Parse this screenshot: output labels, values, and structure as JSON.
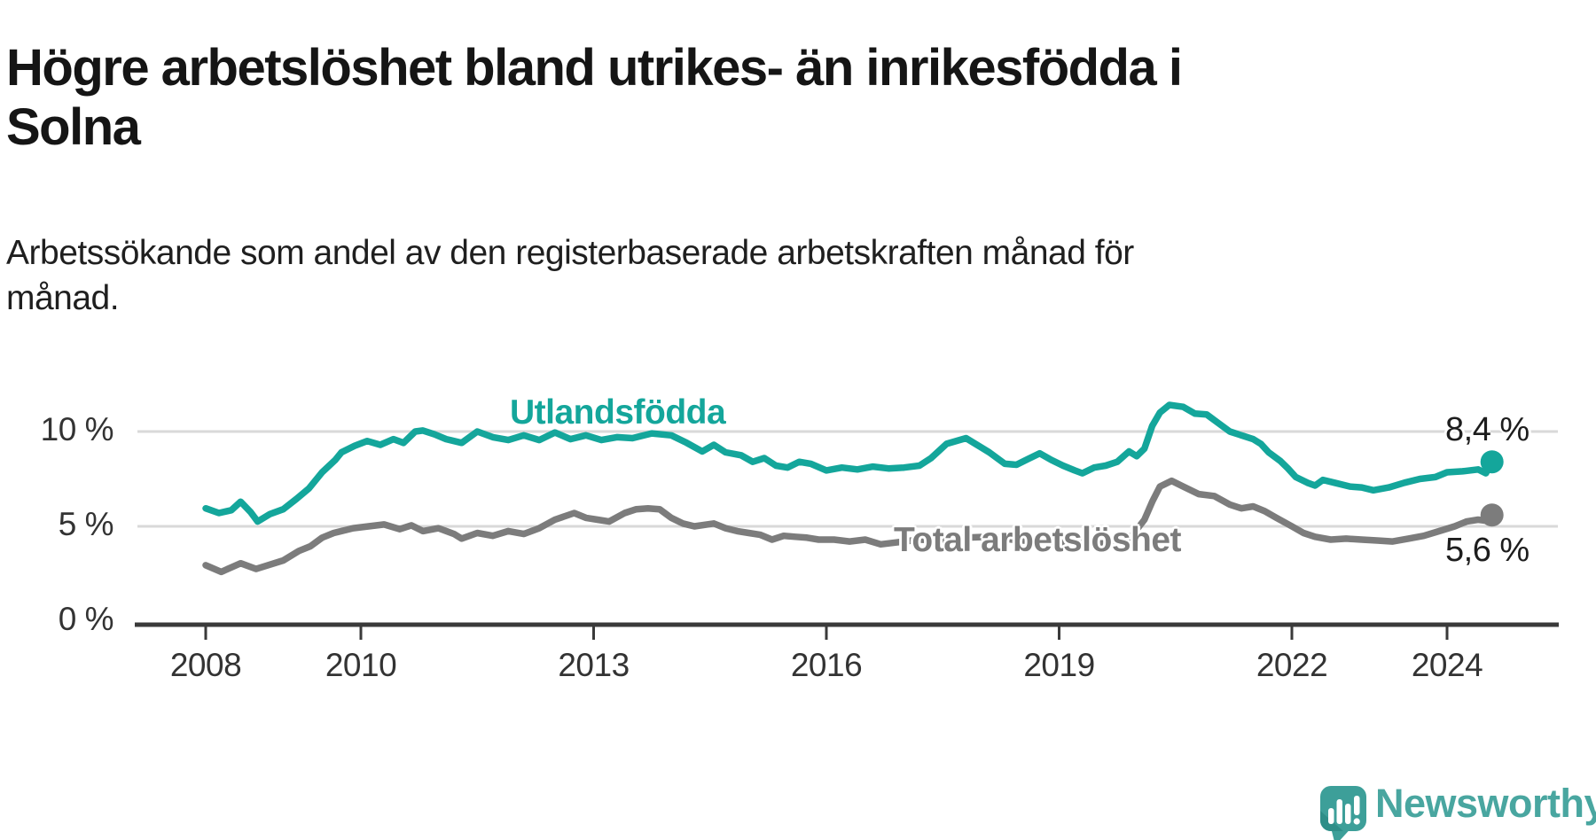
{
  "header": {
    "title_lines": [
      "Högre arbetslöshet bland utrikes- än inrikesfödda i",
      "Solna"
    ],
    "subtitle_lines": [
      "Arbetssökande som andel av den registerbaserade arbetskraften månad för",
      "månad."
    ]
  },
  "footer": {
    "brand": "Newsworthy",
    "logo_icon": "speech-bubble-bar-chart-icon"
  },
  "colors": {
    "teal": "#14a69b",
    "gray": "#7c7c7c",
    "grid": "#d9d9d9",
    "axis": "#3a3a3a",
    "value_label": "#1d1d1d",
    "brand": "#49a6a0",
    "title_text": "#151515",
    "axis_text": "#333333"
  },
  "chart_data": {
    "type": "line",
    "title": "Högre arbetslöshet bland utrikes- än inrikesfödda i Solna",
    "subtitle": "Arbetssökande som andel av den registerbaserade arbetskraften månad för månad.",
    "unit": "%",
    "grid": "horizontal-only",
    "legend_position": "inline-labels",
    "xlim": [
      2007.9,
      2025.4
    ],
    "ylim": [
      0,
      12.5
    ],
    "x_ticks": [
      {
        "year": 2008,
        "label": "2008"
      },
      {
        "year": 2010,
        "label": "2010"
      },
      {
        "year": 2013,
        "label": "2013"
      },
      {
        "year": 2016,
        "label": "2016"
      },
      {
        "year": 2019,
        "label": "2019"
      },
      {
        "year": 2022,
        "label": "2022"
      },
      {
        "year": 2024,
        "label": "2024"
      }
    ],
    "y_ticks": [
      {
        "value": 10,
        "label": "10 %"
      },
      {
        "value": 5,
        "label": "5 %"
      },
      {
        "value": 0,
        "label": "0 %"
      }
    ],
    "series": [
      {
        "name": "Utlandsfödda",
        "color": "#14a69b",
        "end_label": "8,4 %",
        "final_value": 8.4,
        "points": [
          [
            2008.0,
            5.95
          ],
          [
            2008.17,
            5.7
          ],
          [
            2008.33,
            5.85
          ],
          [
            2008.45,
            6.3
          ],
          [
            2008.58,
            5.75
          ],
          [
            2008.67,
            5.25
          ],
          [
            2008.83,
            5.65
          ],
          [
            2009.0,
            5.9
          ],
          [
            2009.17,
            6.45
          ],
          [
            2009.33,
            7.0
          ],
          [
            2009.5,
            7.85
          ],
          [
            2009.67,
            8.5
          ],
          [
            2009.75,
            8.9
          ],
          [
            2009.92,
            9.25
          ],
          [
            2010.08,
            9.5
          ],
          [
            2010.25,
            9.3
          ],
          [
            2010.42,
            9.6
          ],
          [
            2010.55,
            9.4
          ],
          [
            2010.7,
            10.0
          ],
          [
            2010.8,
            10.05
          ],
          [
            2010.95,
            9.85
          ],
          [
            2011.1,
            9.6
          ],
          [
            2011.3,
            9.4
          ],
          [
            2011.5,
            10.0
          ],
          [
            2011.7,
            9.7
          ],
          [
            2011.9,
            9.55
          ],
          [
            2012.1,
            9.8
          ],
          [
            2012.3,
            9.55
          ],
          [
            2012.5,
            9.95
          ],
          [
            2012.7,
            9.6
          ],
          [
            2012.9,
            9.8
          ],
          [
            2013.1,
            9.55
          ],
          [
            2013.3,
            9.7
          ],
          [
            2013.5,
            9.65
          ],
          [
            2013.75,
            9.9
          ],
          [
            2014.0,
            9.8
          ],
          [
            2014.2,
            9.4
          ],
          [
            2014.4,
            8.95
          ],
          [
            2014.55,
            9.3
          ],
          [
            2014.7,
            8.9
          ],
          [
            2014.9,
            8.75
          ],
          [
            2015.05,
            8.4
          ],
          [
            2015.2,
            8.6
          ],
          [
            2015.35,
            8.2
          ],
          [
            2015.5,
            8.1
          ],
          [
            2015.65,
            8.4
          ],
          [
            2015.8,
            8.3
          ],
          [
            2016.0,
            7.95
          ],
          [
            2016.2,
            8.1
          ],
          [
            2016.4,
            8.0
          ],
          [
            2016.6,
            8.15
          ],
          [
            2016.8,
            8.05
          ],
          [
            2017.0,
            8.1
          ],
          [
            2017.2,
            8.2
          ],
          [
            2017.35,
            8.6
          ],
          [
            2017.55,
            9.35
          ],
          [
            2017.8,
            9.65
          ],
          [
            2018.1,
            8.9
          ],
          [
            2018.3,
            8.3
          ],
          [
            2018.45,
            8.25
          ],
          [
            2018.6,
            8.55
          ],
          [
            2018.75,
            8.85
          ],
          [
            2018.9,
            8.5
          ],
          [
            2019.05,
            8.2
          ],
          [
            2019.2,
            7.95
          ],
          [
            2019.3,
            7.8
          ],
          [
            2019.45,
            8.1
          ],
          [
            2019.6,
            8.2
          ],
          [
            2019.75,
            8.4
          ],
          [
            2019.9,
            8.95
          ],
          [
            2020.0,
            8.7
          ],
          [
            2020.1,
            9.1
          ],
          [
            2020.2,
            10.3
          ],
          [
            2020.3,
            11.0
          ],
          [
            2020.42,
            11.4
          ],
          [
            2020.6,
            11.3
          ],
          [
            2020.75,
            10.95
          ],
          [
            2020.9,
            10.9
          ],
          [
            2021.05,
            10.45
          ],
          [
            2021.2,
            10.0
          ],
          [
            2021.35,
            9.8
          ],
          [
            2021.5,
            9.6
          ],
          [
            2021.6,
            9.35
          ],
          [
            2021.7,
            8.9
          ],
          [
            2021.85,
            8.45
          ],
          [
            2021.95,
            8.05
          ],
          [
            2022.05,
            7.6
          ],
          [
            2022.2,
            7.3
          ],
          [
            2022.3,
            7.15
          ],
          [
            2022.4,
            7.45
          ],
          [
            2022.55,
            7.3
          ],
          [
            2022.75,
            7.1
          ],
          [
            2022.9,
            7.05
          ],
          [
            2023.05,
            6.9
          ],
          [
            2023.25,
            7.05
          ],
          [
            2023.45,
            7.3
          ],
          [
            2023.65,
            7.5
          ],
          [
            2023.85,
            7.6
          ],
          [
            2024.0,
            7.85
          ],
          [
            2024.2,
            7.9
          ],
          [
            2024.4,
            8.0
          ],
          [
            2024.5,
            7.8
          ],
          [
            2024.58,
            8.4
          ]
        ]
      },
      {
        "name": "Total arbetslöshet",
        "color": "#7c7c7c",
        "end_label": "5,6 %",
        "final_value": 5.6,
        "points": [
          [
            2008.0,
            2.95
          ],
          [
            2008.2,
            2.6
          ],
          [
            2008.45,
            3.05
          ],
          [
            2008.65,
            2.75
          ],
          [
            2009.0,
            3.2
          ],
          [
            2009.2,
            3.7
          ],
          [
            2009.35,
            3.95
          ],
          [
            2009.5,
            4.4
          ],
          [
            2009.65,
            4.65
          ],
          [
            2009.9,
            4.9
          ],
          [
            2010.1,
            5.0
          ],
          [
            2010.3,
            5.1
          ],
          [
            2010.5,
            4.85
          ],
          [
            2010.65,
            5.05
          ],
          [
            2010.8,
            4.75
          ],
          [
            2011.0,
            4.9
          ],
          [
            2011.2,
            4.6
          ],
          [
            2011.3,
            4.35
          ],
          [
            2011.5,
            4.65
          ],
          [
            2011.7,
            4.5
          ],
          [
            2011.9,
            4.75
          ],
          [
            2012.1,
            4.6
          ],
          [
            2012.3,
            4.9
          ],
          [
            2012.5,
            5.35
          ],
          [
            2012.75,
            5.7
          ],
          [
            2012.9,
            5.45
          ],
          [
            2013.05,
            5.35
          ],
          [
            2013.2,
            5.25
          ],
          [
            2013.4,
            5.7
          ],
          [
            2013.55,
            5.9
          ],
          [
            2013.7,
            5.95
          ],
          [
            2013.85,
            5.9
          ],
          [
            2014.0,
            5.45
          ],
          [
            2014.15,
            5.15
          ],
          [
            2014.3,
            5.0
          ],
          [
            2014.55,
            5.15
          ],
          [
            2014.7,
            4.9
          ],
          [
            2014.85,
            4.75
          ],
          [
            2015.0,
            4.65
          ],
          [
            2015.15,
            4.55
          ],
          [
            2015.3,
            4.3
          ],
          [
            2015.45,
            4.5
          ],
          [
            2015.6,
            4.45
          ],
          [
            2015.75,
            4.4
          ],
          [
            2015.9,
            4.3
          ],
          [
            2016.1,
            4.3
          ],
          [
            2016.3,
            4.2
          ],
          [
            2016.5,
            4.3
          ],
          [
            2016.7,
            4.05
          ],
          [
            2016.9,
            4.15
          ],
          [
            2017.2,
            4.3
          ],
          [
            2017.5,
            4.25
          ],
          [
            2017.8,
            4.4
          ],
          [
            2018.1,
            4.45
          ],
          [
            2018.4,
            4.3
          ],
          [
            2018.7,
            4.2
          ],
          [
            2019.0,
            4.15
          ],
          [
            2019.3,
            4.1
          ],
          [
            2019.6,
            4.1
          ],
          [
            2019.9,
            4.3
          ],
          [
            2020.1,
            5.35
          ],
          [
            2020.2,
            6.3
          ],
          [
            2020.3,
            7.1
          ],
          [
            2020.45,
            7.4
          ],
          [
            2020.6,
            7.1
          ],
          [
            2020.8,
            6.7
          ],
          [
            2021.0,
            6.6
          ],
          [
            2021.2,
            6.15
          ],
          [
            2021.35,
            5.95
          ],
          [
            2021.5,
            6.05
          ],
          [
            2021.65,
            5.8
          ],
          [
            2021.8,
            5.45
          ],
          [
            2022.0,
            5.0
          ],
          [
            2022.15,
            4.65
          ],
          [
            2022.3,
            4.45
          ],
          [
            2022.5,
            4.3
          ],
          [
            2022.7,
            4.35
          ],
          [
            2022.9,
            4.3
          ],
          [
            2023.1,
            4.25
          ],
          [
            2023.3,
            4.2
          ],
          [
            2023.5,
            4.35
          ],
          [
            2023.7,
            4.5
          ],
          [
            2023.9,
            4.75
          ],
          [
            2024.1,
            5.0
          ],
          [
            2024.25,
            5.25
          ],
          [
            2024.4,
            5.35
          ],
          [
            2024.5,
            5.3
          ],
          [
            2024.58,
            5.6
          ]
        ]
      }
    ]
  }
}
